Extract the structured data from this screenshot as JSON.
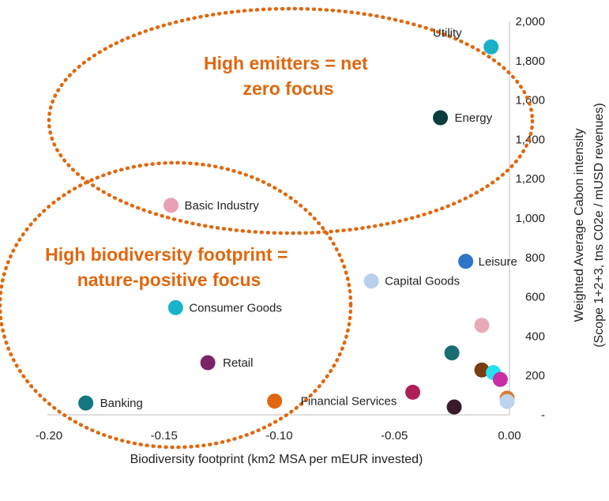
{
  "chart_data": {
    "type": "scatter",
    "title": "",
    "xlabel": "Biodiversity footprint (km2 MSA per mEUR invested)",
    "ylabel": [
      "Weighted Average Cabon intensity",
      "(Scope 1+2+3, tns C02e / mUSD revenues)"
    ],
    "xlim": [
      -0.2,
      0.0
    ],
    "ylim": [
      0,
      2000
    ],
    "x_ticks": [
      "-0.20",
      "-0.15",
      "-0.10",
      "-0.05",
      "0.00"
    ],
    "y_ticks": [
      "-",
      "200",
      "400",
      "600",
      "800",
      "1,000",
      "1,200",
      "1,400",
      "1,600",
      "1,800",
      "2,000"
    ],
    "grid": false,
    "points": [
      {
        "label": "Utility",
        "x": -0.008,
        "y": 1870,
        "color": "#1ab0c7"
      },
      {
        "label": "Energy",
        "x": -0.03,
        "y": 1510,
        "color": "#0a3c40"
      },
      {
        "label": "Basic Industry",
        "x": -0.147,
        "y": 1065,
        "color": "#e8a0b4"
      },
      {
        "label": "Leisure",
        "x": -0.019,
        "y": 780,
        "color": "#2e74c9"
      },
      {
        "label": "Capital Goods",
        "x": -0.06,
        "y": 680,
        "color": "#b8cfee"
      },
      {
        "label": "Consumer Goods",
        "x": -0.145,
        "y": 545,
        "color": "#16b3c9"
      },
      {
        "label": "Retail",
        "x": -0.131,
        "y": 265,
        "color": "#7a2466"
      },
      {
        "label": "Banking",
        "x": -0.184,
        "y": 60,
        "color": "#127781"
      },
      {
        "label": "Financial Services",
        "x": -0.102,
        "y": 70,
        "color": "#e0670e"
      },
      {
        "label": "",
        "x": -0.012,
        "y": 455,
        "color": "#e8aab8"
      },
      {
        "label": "",
        "x": -0.025,
        "y": 315,
        "color": "#1a6e72"
      },
      {
        "label": "",
        "x": -0.012,
        "y": 228,
        "color": "#7a3d10"
      },
      {
        "label": "",
        "x": -0.007,
        "y": 215,
        "color": "#26e0f2"
      },
      {
        "label": "",
        "x": -0.004,
        "y": 180,
        "color": "#c72ea6"
      },
      {
        "label": "",
        "x": -0.042,
        "y": 115,
        "color": "#b01e58"
      },
      {
        "label": "",
        "x": -0.001,
        "y": 85,
        "color": "#e0792c"
      },
      {
        "label": "",
        "x": -0.001,
        "y": 68,
        "color": "#bcd4ee"
      },
      {
        "label": "",
        "x": -0.024,
        "y": 40,
        "color": "#3a1a2a"
      }
    ],
    "annotations": [
      {
        "lines": [
          "High emitters = net",
          "zero focus"
        ],
        "color": "#e0670e"
      },
      {
        "lines": [
          "High biodiversity footprint =",
          "nature-positive focus"
        ],
        "color": "#e0670e"
      }
    ]
  }
}
